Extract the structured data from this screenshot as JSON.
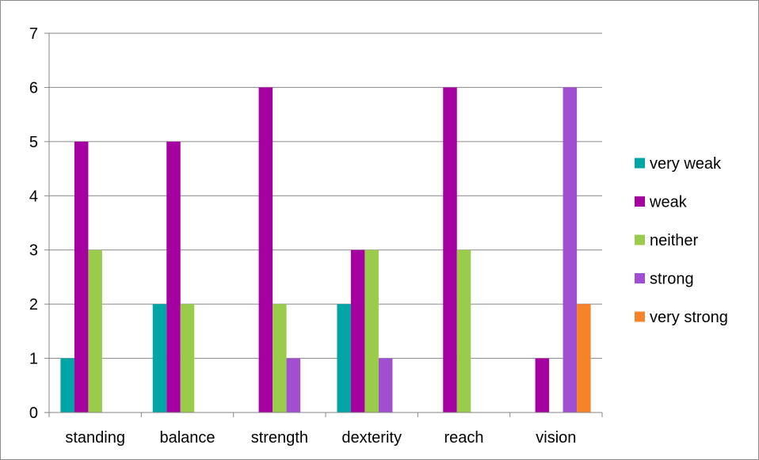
{
  "chart_data": {
    "type": "bar",
    "title": "",
    "xlabel": "",
    "ylabel": "",
    "categories": [
      "standing",
      "balance",
      "strength",
      "dexterity",
      "reach",
      "vision"
    ],
    "ylim": [
      0,
      7
    ],
    "yticks": [
      0,
      1,
      2,
      3,
      4,
      5,
      6,
      7
    ],
    "grid": true,
    "legend_position": "right",
    "series": [
      {
        "name": "very weak",
        "color": "#00A5A5",
        "values": [
          1,
          2,
          0,
          2,
          0,
          0
        ]
      },
      {
        "name": "weak",
        "color": "#A500A0",
        "values": [
          5,
          5,
          6,
          3,
          6,
          1
        ]
      },
      {
        "name": "neither",
        "color": "#9BCB4B",
        "values": [
          3,
          2,
          2,
          3,
          3,
          0
        ]
      },
      {
        "name": "strong",
        "color": "#9F4FD0",
        "values": [
          0,
          0,
          1,
          1,
          0,
          6
        ]
      },
      {
        "name": "very strong",
        "color": "#F6822A",
        "values": [
          0,
          0,
          0,
          0,
          0,
          2
        ]
      }
    ]
  }
}
